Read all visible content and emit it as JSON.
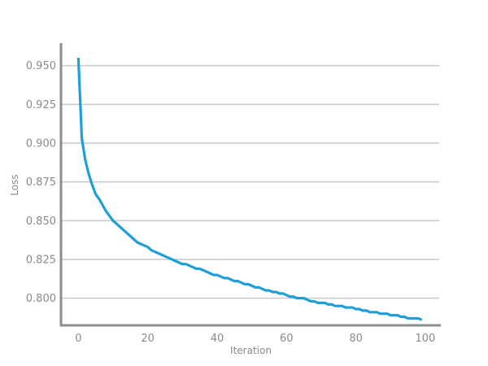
{
  "chart_data": {
    "type": "line",
    "title": "",
    "xlabel": "Iteration",
    "ylabel": "Loss",
    "xlim": [
      -5,
      104
    ],
    "ylim": [
      0.7825,
      0.9645
    ],
    "x_ticks": [
      0,
      20,
      40,
      60,
      80,
      100
    ],
    "y_ticks": [
      0.8,
      0.825,
      0.85,
      0.875,
      0.9,
      0.925,
      0.95
    ],
    "y_tick_labels": [
      "0.800",
      "0.825",
      "0.850",
      "0.875",
      "0.900",
      "0.925",
      "0.950"
    ],
    "grid": "horizontal",
    "legend": "none",
    "colors": {
      "line": "#1f9fd9",
      "grid": "#cccccc",
      "axis": "#8c8c8c",
      "text": "#8a8a8a"
    },
    "series": [
      {
        "x": [
          0,
          1,
          2,
          3,
          4,
          5,
          6,
          7,
          8,
          9,
          10,
          11,
          12,
          13,
          14,
          15,
          16,
          17,
          18,
          19,
          20,
          21,
          22,
          23,
          24,
          25,
          26,
          27,
          28,
          29,
          30,
          31,
          32,
          33,
          34,
          35,
          36,
          37,
          38,
          39,
          40,
          41,
          42,
          43,
          44,
          45,
          46,
          47,
          48,
          49,
          50,
          51,
          52,
          53,
          54,
          55,
          56,
          57,
          58,
          59,
          60,
          61,
          62,
          63,
          64,
          65,
          66,
          67,
          68,
          69,
          70,
          71,
          72,
          73,
          74,
          75,
          76,
          77,
          78,
          79,
          80,
          81,
          82,
          83,
          84,
          85,
          86,
          87,
          88,
          89,
          90,
          91,
          92,
          93,
          94,
          95,
          96,
          97,
          98,
          99
        ],
        "values": [
          0.955,
          0.903,
          0.889,
          0.88,
          0.873,
          0.867,
          0.864,
          0.86,
          0.856,
          0.853,
          0.85,
          0.848,
          0.846,
          0.844,
          0.842,
          0.84,
          0.838,
          0.836,
          0.835,
          0.834,
          0.833,
          0.831,
          0.83,
          0.829,
          0.828,
          0.827,
          0.826,
          0.825,
          0.824,
          0.823,
          0.822,
          0.822,
          0.821,
          0.82,
          0.819,
          0.819,
          0.818,
          0.817,
          0.816,
          0.815,
          0.815,
          0.814,
          0.813,
          0.813,
          0.812,
          0.811,
          0.811,
          0.81,
          0.809,
          0.809,
          0.808,
          0.807,
          0.807,
          0.806,
          0.805,
          0.805,
          0.804,
          0.804,
          0.803,
          0.803,
          0.802,
          0.801,
          0.801,
          0.8,
          0.8,
          0.8,
          0.799,
          0.798,
          0.798,
          0.797,
          0.797,
          0.797,
          0.796,
          0.796,
          0.795,
          0.795,
          0.795,
          0.794,
          0.794,
          0.794,
          0.793,
          0.793,
          0.792,
          0.792,
          0.791,
          0.791,
          0.791,
          0.79,
          0.79,
          0.79,
          0.789,
          0.789,
          0.789,
          0.788,
          0.788,
          0.787,
          0.787,
          0.787,
          0.787,
          0.786
        ]
      }
    ]
  }
}
